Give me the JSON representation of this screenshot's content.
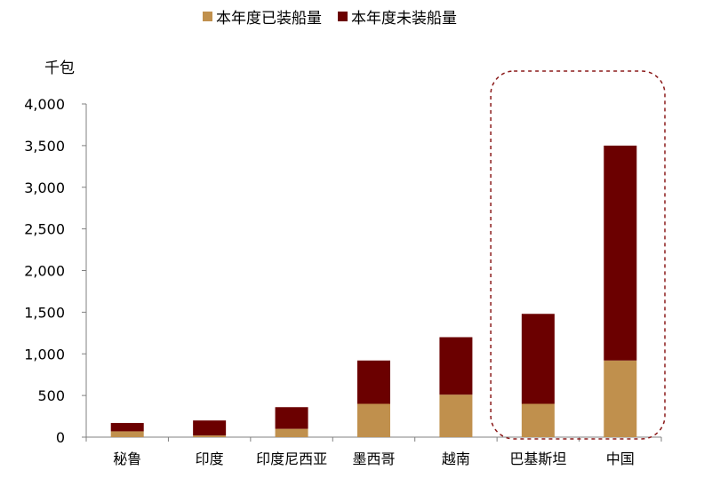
{
  "chart_data": {
    "type": "bar",
    "stacked": true,
    "ylabel": "千包",
    "ylim": [
      0,
      4000
    ],
    "yticks": [
      0,
      500,
      1000,
      1500,
      2000,
      2500,
      3000,
      3500,
      4000
    ],
    "ytick_labels": [
      "0",
      "500",
      "1,000",
      "1,500",
      "2,000",
      "2,500",
      "3,000",
      "3,500",
      "4,000"
    ],
    "categories": [
      "秘鲁",
      "印度",
      "印度尼西亚",
      "墨西哥",
      "越南",
      "巴基斯坦",
      "中国"
    ],
    "series": [
      {
        "name": "本年度已装船量",
        "color": "#C0904D",
        "values": [
          70,
          20,
          100,
          400,
          510,
          400,
          920
        ]
      },
      {
        "name": "本年度未装船量",
        "color": "#6B0000",
        "values": [
          100,
          180,
          260,
          520,
          690,
          1080,
          2580
        ]
      }
    ],
    "legend_position": "top",
    "grid": false,
    "highlight": {
      "categories": [
        "巴基斯坦",
        "中国"
      ],
      "style": "dashed-rounded-box",
      "color": "#8B1A1A"
    }
  }
}
